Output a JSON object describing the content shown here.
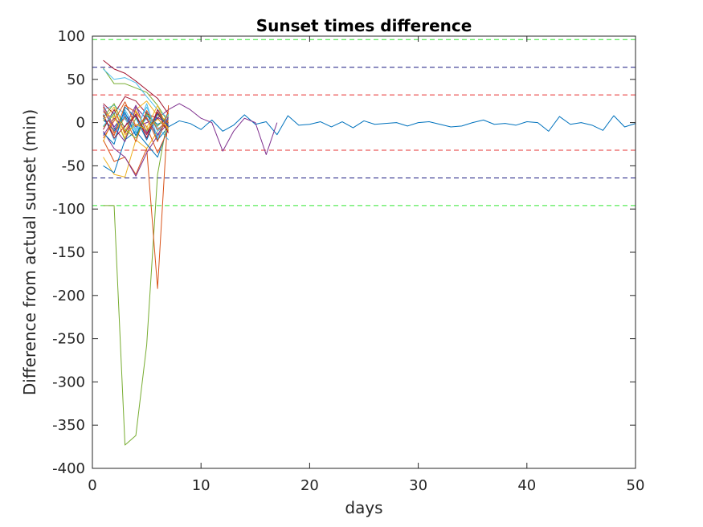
{
  "chart_data": {
    "type": "line",
    "title": "Sunset times difference",
    "xlabel": "days",
    "ylabel": "Difference from actual sunset (min)",
    "xlim": [
      0,
      50
    ],
    "ylim": [
      -400,
      100
    ],
    "xticks": [
      0,
      10,
      20,
      30,
      40,
      50
    ],
    "yticks": [
      100,
      50,
      0,
      -50,
      -100,
      -150,
      -200,
      -250,
      -300,
      -350,
      -400
    ],
    "grid": false,
    "reference_lines": [
      {
        "y": 96,
        "color": "#33e633"
      },
      {
        "y": -96,
        "color": "#33e633"
      },
      {
        "y": 64,
        "color": "#1a1a80"
      },
      {
        "y": -64,
        "color": "#1a1a80"
      },
      {
        "y": 32,
        "color": "#e63333"
      },
      {
        "y": -32,
        "color": "#e63333"
      }
    ],
    "series": [
      {
        "color": "#0072BD",
        "x": [
          1,
          2,
          3,
          4,
          5,
          6,
          7,
          8,
          9,
          10,
          11,
          12,
          13,
          14,
          15,
          16,
          17,
          18,
          19,
          20,
          21,
          22,
          23,
          24,
          25,
          26,
          27,
          28,
          29,
          30,
          31,
          32,
          33,
          34,
          35,
          36,
          37,
          38,
          39,
          40,
          41,
          42,
          43,
          44,
          45,
          46,
          47,
          48,
          49,
          50
        ],
        "y": [
          5,
          -10,
          8,
          -15,
          12,
          -20,
          -5,
          2,
          -1,
          -8,
          3,
          -10,
          -3,
          9,
          -2,
          1,
          -14,
          8,
          -3,
          -2,
          1,
          -5,
          1,
          -6,
          2,
          -2,
          -1,
          0,
          -4,
          0,
          1,
          -2,
          -5,
          -4,
          0,
          3,
          -2,
          -1,
          -3,
          1,
          0,
          -10,
          7,
          -2,
          0,
          -3,
          -9,
          8,
          -5,
          -1
        ]
      },
      {
        "color": "#7E2F8E",
        "x": [
          1,
          2,
          3,
          4,
          5,
          6,
          7,
          8,
          9,
          10,
          11,
          12,
          13,
          14,
          15,
          16,
          17
        ],
        "y": [
          20,
          -5,
          10,
          -5,
          0,
          5,
          15,
          22,
          15,
          5,
          0,
          -33,
          -10,
          5,
          0,
          -37,
          0
        ]
      },
      {
        "color": "#A2142F",
        "x": [
          1,
          2,
          3,
          4,
          5,
          6,
          7
        ],
        "y": [
          72,
          62,
          57,
          48,
          38,
          28,
          10
        ]
      },
      {
        "color": "#77AC30",
        "x": [
          1,
          2,
          3,
          4,
          5,
          6,
          7
        ],
        "y": [
          63,
          45,
          45,
          40,
          35,
          20,
          0
        ]
      },
      {
        "color": "#4DBEEE",
        "x": [
          1,
          2,
          3,
          4,
          5,
          6,
          7
        ],
        "y": [
          62,
          50,
          52,
          46,
          30,
          15,
          5
        ]
      },
      {
        "color": "#77AC30",
        "x": [
          1,
          2,
          3,
          4,
          5,
          6,
          7
        ],
        "y": [
          -96,
          -96,
          -373,
          -362,
          -257,
          -60,
          10
        ]
      },
      {
        "color": "#D95319",
        "x": [
          1,
          2,
          3,
          4,
          5,
          6,
          7
        ],
        "y": [
          -20,
          -45,
          -40,
          -60,
          -30,
          -192,
          20
        ]
      },
      {
        "color": "#EDB120",
        "x": [
          1,
          2,
          3,
          4,
          5,
          6,
          7
        ],
        "y": [
          -40,
          -60,
          -63,
          -20,
          -30,
          -10,
          0
        ]
      },
      {
        "color": "#0072BD",
        "x": [
          1,
          2,
          3,
          4,
          5,
          6,
          7
        ],
        "y": [
          -50,
          -58,
          -20,
          -10,
          -25,
          -40,
          -5
        ]
      },
      {
        "color": "#7E2F8E",
        "x": [
          1,
          2,
          3,
          4,
          5,
          6,
          7
        ],
        "y": [
          -10,
          -30,
          -40,
          -62,
          -35,
          -15,
          0
        ]
      },
      {
        "color": "#4DBEEE",
        "x": [
          1,
          2,
          3,
          4,
          5,
          6,
          7
        ],
        "y": [
          15,
          20,
          10,
          -10,
          5,
          -5,
          -20
        ]
      },
      {
        "color": "#A2142F",
        "x": [
          1,
          2,
          3,
          4,
          5,
          6,
          7
        ],
        "y": [
          22,
          10,
          30,
          25,
          10,
          5,
          -10
        ]
      },
      {
        "color": "#D95319",
        "x": [
          1,
          2,
          3,
          4,
          5,
          6,
          7
        ],
        "y": [
          8,
          -15,
          20,
          12,
          -5,
          -35,
          -8
        ]
      },
      {
        "color": "#EDB120",
        "x": [
          1,
          2,
          3,
          4,
          5,
          6,
          7
        ],
        "y": [
          12,
          5,
          -10,
          15,
          25,
          8,
          2
        ]
      },
      {
        "color": "#77AC30",
        "x": [
          1,
          2,
          3,
          4,
          5,
          6,
          7
        ],
        "y": [
          -5,
          10,
          -20,
          5,
          -10,
          12,
          -3
        ]
      },
      {
        "color": "#0072BD",
        "x": [
          1,
          2,
          3,
          4,
          5,
          6,
          7
        ],
        "y": [
          3,
          -8,
          12,
          -15,
          8,
          -2,
          4
        ]
      },
      {
        "color": "#7E2F8E",
        "x": [
          1,
          2,
          3,
          4,
          5,
          6,
          7
        ],
        "y": [
          -15,
          5,
          -5,
          20,
          -12,
          6,
          -2
        ]
      },
      {
        "color": "#4DBEEE",
        "x": [
          1,
          2,
          3,
          4,
          5,
          6,
          7
        ],
        "y": [
          10,
          -20,
          15,
          -8,
          18,
          -10,
          5
        ]
      },
      {
        "color": "#A2142F",
        "x": [
          1,
          2,
          3,
          4,
          5,
          6,
          7
        ],
        "y": [
          -8,
          15,
          -12,
          10,
          -18,
          15,
          -6
        ]
      },
      {
        "color": "#D95319",
        "x": [
          1,
          2,
          3,
          4,
          5,
          6,
          7
        ],
        "y": [
          18,
          -12,
          6,
          -22,
          14,
          -8,
          3
        ]
      },
      {
        "color": "#EDB120",
        "x": [
          1,
          2,
          3,
          4,
          5,
          6,
          7
        ],
        "y": [
          -22,
          8,
          -18,
          14,
          -6,
          20,
          -10
        ]
      },
      {
        "color": "#77AC30",
        "x": [
          1,
          2,
          3,
          4,
          5,
          6,
          7
        ],
        "y": [
          6,
          22,
          -8,
          -18,
          10,
          -4,
          8
        ]
      },
      {
        "color": "#0072BD",
        "x": [
          1,
          2,
          3,
          4,
          5,
          6,
          7
        ],
        "y": [
          -12,
          -25,
          18,
          6,
          -20,
          10,
          -4
        ]
      },
      {
        "color": "#7E2F8E",
        "x": [
          1,
          2,
          3,
          4,
          5,
          6,
          7
        ],
        "y": [
          14,
          -6,
          -22,
          18,
          4,
          -14,
          6
        ]
      },
      {
        "color": "#4DBEEE",
        "x": [
          1,
          2,
          3,
          4,
          5,
          6,
          7
        ],
        "y": [
          -4,
          12,
          4,
          -12,
          22,
          -18,
          10
        ]
      },
      {
        "color": "#A2142F",
        "x": [
          1,
          2,
          3,
          4,
          5,
          6,
          7
        ],
        "y": [
          9,
          -18,
          -4,
          8,
          -14,
          12,
          -12
        ]
      },
      {
        "color": "#D95319",
        "x": [
          1,
          2,
          3,
          4,
          5,
          6,
          7
        ],
        "y": [
          -18,
          2,
          24,
          -4,
          6,
          -22,
          14
        ]
      },
      {
        "color": "#EDB120",
        "x": [
          1,
          2,
          3,
          4,
          5,
          6,
          7
        ],
        "y": [
          2,
          18,
          -14,
          -2,
          -8,
          4,
          -6
        ]
      }
    ]
  }
}
